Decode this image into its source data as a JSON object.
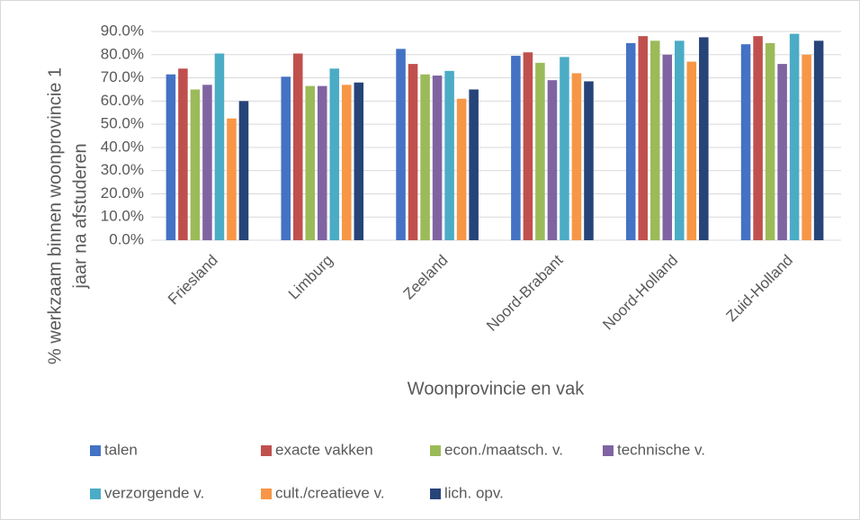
{
  "chart_data": {
    "type": "bar",
    "ylabel": [
      "% werkzaam binnen woonprovincie 1",
      "jaar na afstuderen"
    ],
    "xlabel": "Woonprovincie en vak",
    "categories": [
      "Friesland",
      "Limburg",
      "Zeeland",
      "Noord-Brabant",
      "Noord-Holland",
      "Zuid-Holland"
    ],
    "series": [
      {
        "name": "talen",
        "color": "#4472c4",
        "values": [
          71.5,
          70.5,
          82.5,
          79.5,
          85,
          84.5
        ]
      },
      {
        "name": "exacte vakken",
        "color": "#c0504d",
        "values": [
          74,
          80.5,
          76,
          81,
          88,
          88
        ]
      },
      {
        "name": "econ./maatsch. v.",
        "color": "#9bbb59",
        "values": [
          65,
          66.5,
          71.5,
          76.5,
          86,
          85
        ]
      },
      {
        "name": "technische v.",
        "color": "#8064a2",
        "values": [
          67,
          66.5,
          71,
          69,
          80,
          76
        ]
      },
      {
        "name": "verzorgende v.",
        "color": "#4bacc6",
        "values": [
          80.5,
          74,
          73,
          79,
          86,
          89
        ]
      },
      {
        "name": "cult./creatieve v.",
        "color": "#f79646",
        "values": [
          52.5,
          67,
          61,
          72,
          77,
          80
        ]
      },
      {
        "name": "lich. opv.",
        "color": "#264478",
        "values": [
          60,
          68,
          65,
          68.5,
          87.5,
          86
        ]
      }
    ],
    "ylim": [
      0,
      90
    ],
    "yticks": [
      {
        "value": 0,
        "label": "0.0%"
      },
      {
        "value": 10,
        "label": "10.0%"
      },
      {
        "value": 20,
        "label": "20.0%"
      },
      {
        "value": 30,
        "label": "30.0%"
      },
      {
        "value": 40,
        "label": "40.0%"
      },
      {
        "value": 50,
        "label": "50.0%"
      },
      {
        "value": 60,
        "label": "60.0%"
      },
      {
        "value": 70,
        "label": "70.0%"
      },
      {
        "value": 80,
        "label": "80.0%"
      },
      {
        "value": 90,
        "label": "90.0%"
      }
    ],
    "grid": true
  }
}
